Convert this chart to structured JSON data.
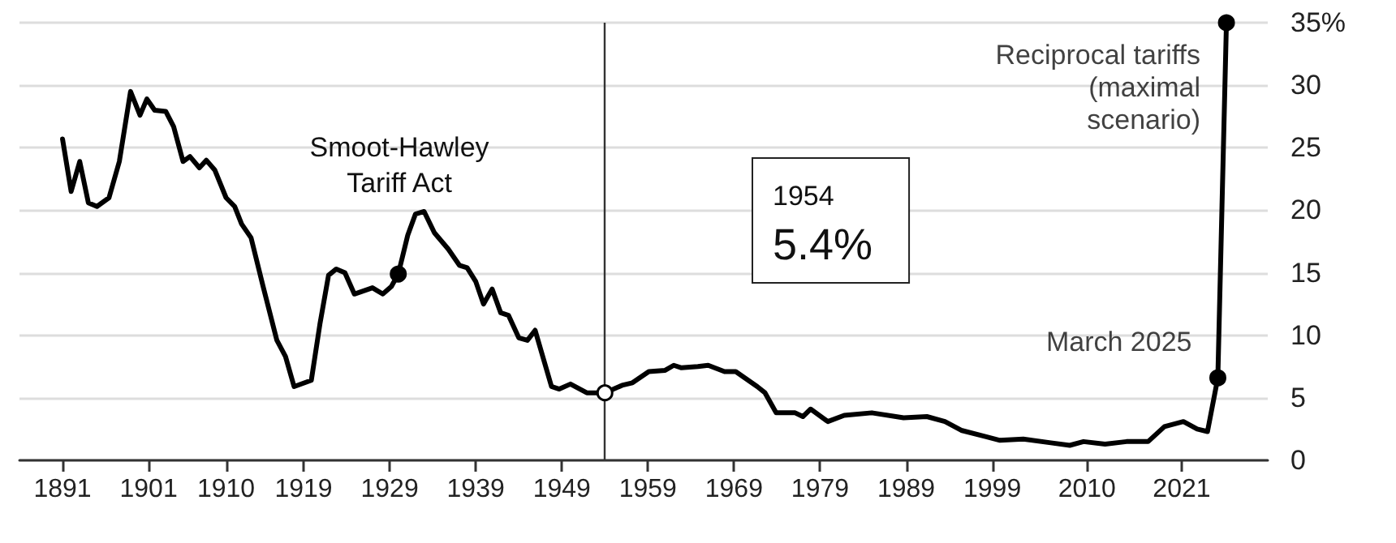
{
  "chart_data": {
    "type": "line",
    "x": [
      1891,
      1892,
      1893,
      1894,
      1895,
      1896.4,
      1897.6,
      1898.9,
      1900,
      1900.8,
      1901.7,
      1903,
      1903.9,
      1905,
      1905.8,
      1906.9,
      1907.7,
      1908.7,
      1910,
      1911,
      1911.8,
      1912.9,
      1914.3,
      1915.9,
      1916.9,
      1917.9,
      1919.9,
      1920.9,
      1921.9,
      1922.8,
      1923.8,
      1924.9,
      1927,
      1928.2,
      1929.2,
      1930,
      1931.1,
      1932,
      1933,
      1934.2,
      1935.8,
      1937.1,
      1938,
      1939,
      1939.9,
      1940.9,
      1941.9,
      1942.8,
      1944,
      1945,
      1945.9,
      1947.8,
      1948.7,
      1950,
      1951.9,
      1954,
      1956,
      1957.2,
      1959.1,
      1961,
      1962,
      1962.9,
      1964.8,
      1966,
      1967.9,
      1969.2,
      1971.7,
      1972.6,
      1973.9,
      1976.1,
      1977,
      1977.9,
      1979.9,
      1981.8,
      1985,
      1988.7,
      1991.4,
      1993.5,
      1995.4,
      1998.2,
      1999.9,
      2002.6,
      2005.8,
      2008,
      2009.6,
      2012.1,
      2014.6,
      2017.1,
      2019,
      2021.2,
      2022.8,
      2024,
      2025.2,
      2026.2
    ],
    "series": [
      {
        "color": "#000000",
        "values": [
          25.7,
          21.5,
          23.9,
          20.6,
          20.3,
          21.0,
          23.9,
          29.5,
          27.6,
          28.9,
          28.0,
          27.9,
          26.7,
          23.9,
          24.3,
          23.4,
          24.0,
          23.2,
          21.0,
          20.3,
          18.9,
          17.8,
          13.9,
          9.6,
          8.3,
          5.9,
          6.4,
          10.9,
          14.8,
          15.3,
          15.0,
          13.3,
          13.8,
          13.3,
          13.9,
          14.9,
          18.0,
          19.7,
          19.9,
          18.2,
          16.9,
          15.6,
          15.4,
          14.3,
          12.5,
          13.7,
          11.8,
          11.6,
          9.8,
          9.6,
          10.4,
          5.9,
          5.7,
          6.1,
          5.4,
          5.4,
          6.0,
          6.2,
          7.1,
          7.2,
          7.6,
          7.4,
          7.5,
          7.6,
          7.1,
          7.1,
          5.9,
          5.4,
          3.8,
          3.8,
          3.5,
          4.1,
          3.1,
          3.6,
          3.8,
          3.4,
          3.5,
          3.1,
          2.4,
          1.9,
          1.6,
          1.7,
          1.4,
          1.2,
          1.5,
          1.3,
          1.5,
          1.5,
          2.7,
          3.1,
          2.5,
          2.3,
          6.6,
          35
        ]
      },
      {
        "type": "scatter",
        "marker": "circle",
        "x": [
          1930,
          1954,
          2025.2,
          2026.2
        ],
        "values": [
          14.9,
          5.4,
          6.6,
          35
        ],
        "colors": [
          "#000000",
          "#ffffff",
          "#000000",
          "#000000"
        ]
      }
    ],
    "xlim": [
      1886,
      2031
    ],
    "xticks": [
      1891,
      1901,
      1910,
      1919,
      1929,
      1939,
      1949,
      1959,
      1969,
      1979,
      1989,
      1999,
      2010,
      2021
    ],
    "ylim": [
      0,
      35
    ],
    "yticks": [
      0,
      5,
      10,
      15,
      20,
      25,
      30,
      {
        "value": 35,
        "label": "35%"
      }
    ],
    "grid": "y",
    "ref_lines": [
      {
        "axis": "x",
        "value": 1954,
        "color": "#333333"
      }
    ],
    "annotations": [
      "Smoot-Hawley\nTariff Act",
      "1954\n5.4%",
      {
        "text": "March 2025",
        "x": 2025.2,
        "y": 6.6
      },
      {
        "text": "Reciprocal tariffs\n(maximal\nscenario)",
        "x": 2026.2,
        "y": 35
      }
    ]
  }
}
